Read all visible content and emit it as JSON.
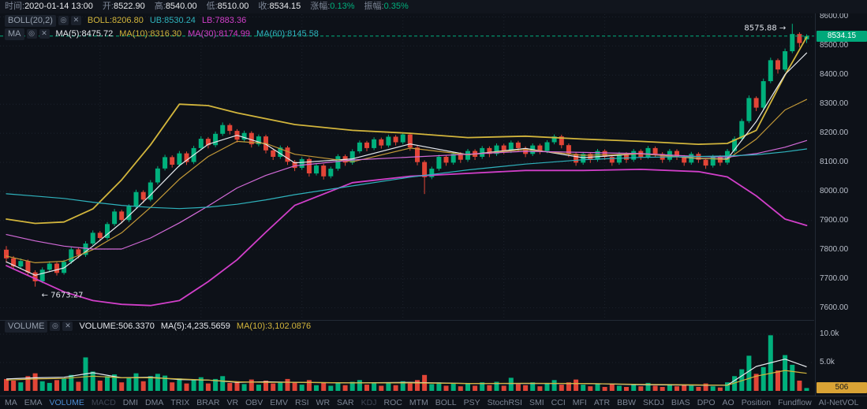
{
  "header": {
    "fields": [
      {
        "label": "时间:",
        "value": "2020-01-14 13:00"
      },
      {
        "label": "开:",
        "value": "8522.90"
      },
      {
        "label": "高:",
        "value": "8540.00"
      },
      {
        "label": "低:",
        "value": "8510.00"
      },
      {
        "label": "收:",
        "value": "8534.15"
      },
      {
        "label": "涨幅:",
        "value": "0.13%",
        "color": "up"
      },
      {
        "label": "振幅:",
        "value": "0.35%",
        "color": "up"
      }
    ],
    "boll_row": {
      "name": "BOLL(20,2)",
      "tokens": [
        {
          "text": "BOLL:8206.80",
          "color": "#d2b53c"
        },
        {
          "text": "UB:8530.24",
          "color": "#2fb3bd"
        },
        {
          "text": "LB:7883.36",
          "color": "#d13fc9"
        }
      ]
    },
    "ma_row": {
      "name": "MA",
      "tokens": [
        {
          "text": "MA(5):8475.72",
          "color": "#e6e9ee"
        },
        {
          "text": "MA(10):8316.30",
          "color": "#d2b53c"
        },
        {
          "text": "MA(30):8174.99",
          "color": "#d13fc9"
        },
        {
          "text": "MA(60):8145.58",
          "color": "#2fb3bd"
        }
      ]
    }
  },
  "volume_header": {
    "name": "VOLUME",
    "tokens": [
      {
        "text": "VOLUME:506.3370",
        "color": "#e6e9ee"
      },
      {
        "text": "MA(5):4,235.5659",
        "color": "#e6e9ee"
      },
      {
        "text": "MA(10):3,102.0876",
        "color": "#d2b53c"
      }
    ]
  },
  "annotations": {
    "high": "8575.88 →",
    "low": "← 7673.27",
    "current_price_label": "8534.15",
    "current_volume_label": "506"
  },
  "axis": {
    "price_labels": [
      "8600.00",
      "8500.00",
      "8400.00",
      "8300.00",
      "8200.00",
      "8100.00",
      "8000.00",
      "7900.00",
      "7800.00",
      "7700.00",
      "7600.00"
    ],
    "volume_labels": [
      {
        "text": "10.0k",
        "value": 10000
      },
      {
        "text": "5.0k",
        "value": 5000
      }
    ]
  },
  "toolbar": {
    "items": [
      "MA",
      "EMA",
      "VOLUME",
      "MACD",
      "DMI",
      "DMA",
      "TRIX",
      "BRAR",
      "VR",
      "OBV",
      "EMV",
      "RSI",
      "WR",
      "SAR",
      "KDJ",
      "ROC",
      "MTM",
      "BOLL",
      "PSY",
      "StochRSI",
      "SMI",
      "CCI",
      "MFI",
      "ATR",
      "BBW",
      "SKDJ",
      "BIAS",
      "DPO",
      "AO",
      "Position",
      "Fundflow",
      "AI-NetVOL"
    ],
    "active": "VOLUME",
    "dim": [
      "MACD",
      "KDJ"
    ]
  },
  "colors": {
    "up": "#00b07c",
    "down": "#e24537",
    "grid": "#1d232d",
    "price_label_bg": "#00a87a",
    "volume_label_bg": "#d9a335",
    "white_line": "#e6e9ee",
    "yellow_line": "#d2b53c",
    "magenta_line": "#d13fc9",
    "cyan_line": "#2fb3bd"
  },
  "chart_data": {
    "type": "candlestick",
    "price_scale": {
      "min": 7580,
      "max": 8620
    },
    "volume_scale": {
      "max": 10000
    },
    "current_price": 8534.15,
    "high_annotation_price": 8575.88,
    "low_annotation_price": 7673.27,
    "candles": [
      [
        7800,
        7812,
        7755,
        7770
      ],
      [
        7770,
        7778,
        7731,
        7742
      ],
      [
        7742,
        7770,
        7736,
        7761
      ],
      [
        7761,
        7766,
        7712,
        7722
      ],
      [
        7722,
        7729,
        7673,
        7691
      ],
      [
        7691,
        7739,
        7685,
        7731
      ],
      [
        7731,
        7760,
        7725,
        7752
      ],
      [
        7752,
        7757,
        7711,
        7720
      ],
      [
        7720,
        7765,
        7714,
        7758
      ],
      [
        7758,
        7809,
        7751,
        7801
      ],
      [
        7801,
        7807,
        7770,
        7782
      ],
      [
        7782,
        7829,
        7775,
        7821
      ],
      [
        7821,
        7866,
        7815,
        7858
      ],
      [
        7858,
        7864,
        7829,
        7840
      ],
      [
        7840,
        7895,
        7833,
        7888
      ],
      [
        7888,
        7940,
        7881,
        7931
      ],
      [
        7931,
        7937,
        7890,
        7902
      ],
      [
        7902,
        7956,
        7895,
        7949
      ],
      [
        7949,
        8006,
        7942,
        7998
      ],
      [
        7998,
        8004,
        7960,
        7972
      ],
      [
        7972,
        8039,
        7966,
        8031
      ],
      [
        8031,
        8087,
        8024,
        8079
      ],
      [
        8079,
        8126,
        8072,
        8118
      ],
      [
        8118,
        8124,
        8082,
        8092
      ],
      [
        8092,
        8139,
        8085,
        8131
      ],
      [
        8131,
        8137,
        8091,
        8101
      ],
      [
        8101,
        8157,
        8094,
        8149
      ],
      [
        8149,
        8190,
        8142,
        8181
      ],
      [
        8181,
        8187,
        8148,
        8159
      ],
      [
        8159,
        8206,
        8152,
        8198
      ],
      [
        8198,
        8237,
        8191,
        8228
      ],
      [
        8228,
        8234,
        8196,
        8208
      ],
      [
        8208,
        8214,
        8168,
        8178
      ],
      [
        8178,
        8209,
        8171,
        8201
      ],
      [
        8201,
        8207,
        8151,
        8162
      ],
      [
        8162,
        8196,
        8155,
        8189
      ],
      [
        8189,
        8195,
        8131,
        8141
      ],
      [
        8141,
        8147,
        8108,
        8119
      ],
      [
        8119,
        8158,
        8112,
        8151
      ],
      [
        8151,
        8157,
        8091,
        8102
      ],
      [
        8102,
        8108,
        8070,
        8081
      ],
      [
        8081,
        8118,
        8074,
        8111
      ],
      [
        8111,
        8117,
        8051,
        8062
      ],
      [
        8062,
        8096,
        8055,
        8089
      ],
      [
        8089,
        8095,
        8041,
        8052
      ],
      [
        8052,
        8085,
        8045,
        8078
      ],
      [
        8078,
        8128,
        8071,
        8121
      ],
      [
        8121,
        8127,
        8088,
        8099
      ],
      [
        8099,
        8145,
        8092,
        8138
      ],
      [
        8138,
        8175,
        8131,
        8168
      ],
      [
        8168,
        8174,
        8138,
        8149
      ],
      [
        8149,
        8186,
        8142,
        8179
      ],
      [
        8179,
        8185,
        8147,
        8158
      ],
      [
        8158,
        8195,
        8151,
        8188
      ],
      [
        8188,
        8194,
        8158,
        8169
      ],
      [
        8169,
        8203,
        8162,
        8196
      ],
      [
        8196,
        8202,
        8140,
        8151
      ],
      [
        8151,
        8157,
        8090,
        8101
      ],
      [
        8101,
        8107,
        7991,
        8049
      ],
      [
        8049,
        8085,
        8042,
        8078
      ],
      [
        8078,
        8126,
        8071,
        8119
      ],
      [
        8119,
        8125,
        8088,
        8099
      ],
      [
        8099,
        8136,
        8092,
        8129
      ],
      [
        8129,
        8135,
        8098,
        8109
      ],
      [
        8109,
        8146,
        8102,
        8139
      ],
      [
        8139,
        8145,
        8108,
        8119
      ],
      [
        8119,
        8156,
        8112,
        8149
      ],
      [
        8149,
        8155,
        8118,
        8129
      ],
      [
        8129,
        8165,
        8122,
        8158
      ],
      [
        8158,
        8164,
        8128,
        8139
      ],
      [
        8139,
        8175,
        8132,
        8168
      ],
      [
        8168,
        8174,
        8138,
        8149
      ],
      [
        8149,
        8155,
        8118,
        8129
      ],
      [
        8129,
        8165,
        8122,
        8158
      ],
      [
        8158,
        8164,
        8128,
        8139
      ],
      [
        8139,
        8176,
        8132,
        8169
      ],
      [
        8169,
        8196,
        8162,
        8189
      ],
      [
        8189,
        8195,
        8148,
        8159
      ],
      [
        8159,
        8165,
        8118,
        8129
      ],
      [
        8129,
        8135,
        8088,
        8099
      ],
      [
        8099,
        8136,
        8092,
        8129
      ],
      [
        8129,
        8135,
        8098,
        8109
      ],
      [
        8109,
        8146,
        8102,
        8139
      ],
      [
        8139,
        8145,
        8108,
        8119
      ],
      [
        8119,
        8125,
        8088,
        8099
      ],
      [
        8099,
        8136,
        8092,
        8129
      ],
      [
        8129,
        8135,
        8098,
        8109
      ],
      [
        8109,
        8146,
        8102,
        8139
      ],
      [
        8139,
        8145,
        8108,
        8119
      ],
      [
        8119,
        8156,
        8112,
        8149
      ],
      [
        8149,
        8155,
        8118,
        8129
      ],
      [
        8129,
        8135,
        8098,
        8109
      ],
      [
        8109,
        8146,
        8102,
        8139
      ],
      [
        8139,
        8145,
        8108,
        8119
      ],
      [
        8119,
        8125,
        8088,
        8099
      ],
      [
        8099,
        8136,
        8092,
        8129
      ],
      [
        8129,
        8135,
        8098,
        8109
      ],
      [
        8109,
        8115,
        8078,
        8089
      ],
      [
        8089,
        8126,
        8082,
        8119
      ],
      [
        8119,
        8125,
        8088,
        8099
      ],
      [
        8099,
        8146,
        8092,
        8139
      ],
      [
        8139,
        8189,
        8132,
        8181
      ],
      [
        8181,
        8250,
        8174,
        8242
      ],
      [
        8242,
        8330,
        8235,
        8321
      ],
      [
        8321,
        8327,
        8276,
        8288
      ],
      [
        8288,
        8388,
        8281,
        8379
      ],
      [
        8379,
        8460,
        8372,
        8451
      ],
      [
        8451,
        8457,
        8405,
        8419
      ],
      [
        8419,
        8491,
        8412,
        8482
      ],
      [
        8482,
        8576,
        8475,
        8541
      ],
      [
        8541,
        8547,
        8495,
        8510
      ],
      [
        8522.9,
        8540,
        8510,
        8534.15
      ]
    ],
    "volumes": [
      2100,
      1800,
      1500,
      2600,
      3100,
      1700,
      1400,
      1900,
      2200,
      2800,
      1600,
      5900,
      3400,
      1800,
      2600,
      2900,
      1500,
      2300,
      3100,
      1700,
      2600,
      3000,
      2700,
      1500,
      2200,
      1300,
      1900,
      2400,
      1300,
      2100,
      2600,
      1400,
      1700,
      1200,
      2000,
      1100,
      1800,
      1300,
      1500,
      2100,
      1600,
      1100,
      1900,
      1000,
      1500,
      900,
      1400,
      1000,
      1600,
      1900,
      1100,
      1500,
      900,
      1400,
      1000,
      1700,
      1300,
      1900,
      2800,
      1200,
      1500,
      900,
      1300,
      800,
      1400,
      900,
      1500,
      1000,
      1600,
      900,
      2300,
      1200,
      1000,
      1500,
      800,
      1400,
      1900,
      1100,
      1500,
      2000,
      1100,
      800,
      1300,
      700,
      1200,
      900,
      700,
      1200,
      800,
      1400,
      900,
      700,
      1200,
      800,
      1100,
      900,
      700,
      1300,
      800,
      600,
      1500,
      2600,
      3800,
      6200,
      3000,
      4200,
      9800,
      3600,
      6300,
      4600,
      1800,
      506
    ],
    "overlays": {
      "sample_indices": [
        0,
        4,
        8,
        12,
        16,
        20,
        24,
        28,
        32,
        36,
        40,
        48,
        56,
        64,
        72,
        80,
        88,
        96,
        100,
        104,
        108,
        111
      ],
      "lines": [
        {
          "name": "boll-upper",
          "color": "#d2b53c",
          "width": 1.8,
          "values": [
            7905,
            7890,
            7895,
            7940,
            8040,
            8160,
            8300,
            8295,
            8270,
            8250,
            8230,
            8210,
            8200,
            8185,
            8190,
            8180,
            8172,
            8162,
            8165,
            8210,
            8400,
            8530
          ]
        },
        {
          "name": "boll-lower",
          "color": "#d13fc9",
          "width": 1.8,
          "values": [
            7745,
            7700,
            7655,
            7625,
            7612,
            7608,
            7625,
            7690,
            7765,
            7860,
            7952,
            8030,
            8052,
            8062,
            8072,
            8072,
            8076,
            8068,
            8050,
            7985,
            7905,
            7883
          ]
        },
        {
          "name": "ma5",
          "color": "#e6e9ee",
          "width": 1.2,
          "values": [
            7758,
            7712,
            7737,
            7812,
            7893,
            7988,
            8089,
            8162,
            8193,
            8162,
            8098,
            8112,
            8163,
            8126,
            8148,
            8116,
            8130,
            8113,
            8112,
            8240,
            8402,
            8476
          ]
        },
        {
          "name": "ma10",
          "color": "#c49a38",
          "width": 1.2,
          "values": [
            7778,
            7755,
            7760,
            7800,
            7858,
            7945,
            8042,
            8120,
            8172,
            8165,
            8128,
            8102,
            8149,
            8126,
            8144,
            8124,
            8129,
            8114,
            8110,
            8180,
            8280,
            8316
          ]
        },
        {
          "name": "ma30",
          "color": "#d36ad8",
          "width": 1.2,
          "values": [
            7852,
            7830,
            7812,
            7802,
            7802,
            7840,
            7892,
            7950,
            8012,
            8055,
            8088,
            8108,
            8118,
            8128,
            8138,
            8134,
            8130,
            8120,
            8118,
            8130,
            8152,
            8175
          ]
        },
        {
          "name": "ma60",
          "color": "#2fb3bd",
          "width": 1.2,
          "values": [
            7992,
            7984,
            7976,
            7963,
            7952,
            7945,
            7941,
            7946,
            7956,
            7971,
            7989,
            8019,
            8049,
            8074,
            8094,
            8109,
            8117,
            8120,
            8122,
            8126,
            8136,
            8146
          ]
        }
      ],
      "volume_lines": [
        {
          "name": "vol-ma5",
          "color": "#e6e9ee",
          "width": 1.2,
          "values": [
            2100,
            2300,
            2400,
            3200,
            2300,
            2400,
            2000,
            1900,
            1500,
            1600,
            1500,
            1400,
            1500,
            1300,
            1300,
            1300,
            1100,
            1000,
            1000,
            4300,
            5600,
            4236
          ]
        },
        {
          "name": "vol-ma10",
          "color": "#d2b53c",
          "width": 1.2,
          "values": [
            1900,
            2100,
            2200,
            2600,
            2300,
            2300,
            2100,
            1900,
            1600,
            1500,
            1500,
            1400,
            1400,
            1300,
            1350,
            1300,
            1150,
            1050,
            1000,
            2600,
            3600,
            3102
          ]
        }
      ]
    }
  }
}
